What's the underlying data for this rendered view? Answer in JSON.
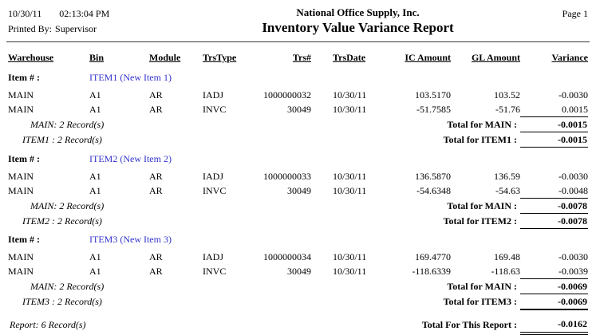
{
  "header": {
    "date": "10/30/11",
    "time": "02:13:04 PM",
    "printed_by_label": "Printed By:",
    "printed_by": "Supervisor",
    "company": "National Office Supply, Inc.",
    "title": "Inventory Value Variance Report",
    "page_label": "Page 1"
  },
  "columns": [
    "Warehouse",
    "Bin",
    "Module",
    "TrsType",
    "Trs#",
    "TrsDate",
    "IC Amount",
    "GL Amount",
    "Variance"
  ],
  "item_label": "Item # :",
  "colors": {
    "item_link": "#3333cc"
  },
  "sections": [
    {
      "item": "ITEM1 (New Item 1)",
      "rows": [
        {
          "warehouse": "MAIN",
          "bin": "A1",
          "module": "AR",
          "trstype": "IADJ",
          "trsnum": "1000000032",
          "trsdate": "10/30/11",
          "ic": "103.5170",
          "gl": "103.52",
          "variance": "-0.0030"
        },
        {
          "warehouse": "MAIN",
          "bin": "A1",
          "module": "AR",
          "trstype": "INVC",
          "trsnum": "30049",
          "trsdate": "10/30/11",
          "ic": "-51.7585",
          "gl": "-51.76",
          "variance": "0.0015"
        }
      ],
      "warehouse_count": "MAIN: 2 Record(s)",
      "warehouse_total_label": "Total for MAIN :",
      "warehouse_total": "-0.0015",
      "item_count": "ITEM1 : 2 Record(s)",
      "item_total_label": "Total for ITEM1 :",
      "item_total": "-0.0015"
    },
    {
      "item": "ITEM2 (New Item 2)",
      "rows": [
        {
          "warehouse": "MAIN",
          "bin": "A1",
          "module": "AR",
          "trstype": "IADJ",
          "trsnum": "1000000033",
          "trsdate": "10/30/11",
          "ic": "136.5870",
          "gl": "136.59",
          "variance": "-0.0030"
        },
        {
          "warehouse": "MAIN",
          "bin": "A1",
          "module": "AR",
          "trstype": "INVC",
          "trsnum": "30049",
          "trsdate": "10/30/11",
          "ic": "-54.6348",
          "gl": "-54.63",
          "variance": "-0.0048"
        }
      ],
      "warehouse_count": "MAIN: 2 Record(s)",
      "warehouse_total_label": "Total for MAIN :",
      "warehouse_total": "-0.0078",
      "item_count": "ITEM2 : 2 Record(s)",
      "item_total_label": "Total for ITEM2 :",
      "item_total": "-0.0078"
    },
    {
      "item": "ITEM3 (New Item 3)",
      "rows": [
        {
          "warehouse": "MAIN",
          "bin": "A1",
          "module": "AR",
          "trstype": "IADJ",
          "trsnum": "1000000034",
          "trsdate": "10/30/11",
          "ic": "169.4770",
          "gl": "169.48",
          "variance": "-0.0030"
        },
        {
          "warehouse": "MAIN",
          "bin": "A1",
          "module": "AR",
          "trstype": "INVC",
          "trsnum": "30049",
          "trsdate": "10/30/11",
          "ic": "-118.6339",
          "gl": "-118.63",
          "variance": "-0.0039"
        }
      ],
      "warehouse_count": "MAIN: 2 Record(s)",
      "warehouse_total_label": "Total for MAIN :",
      "warehouse_total": "-0.0069",
      "item_count": "ITEM3 : 2 Record(s)",
      "item_total_label": "Total for ITEM3 :",
      "item_total": "-0.0069"
    }
  ],
  "report": {
    "count": "Report: 6 Record(s)",
    "total_label": "Total For This Report :",
    "total": "-0.0162"
  }
}
